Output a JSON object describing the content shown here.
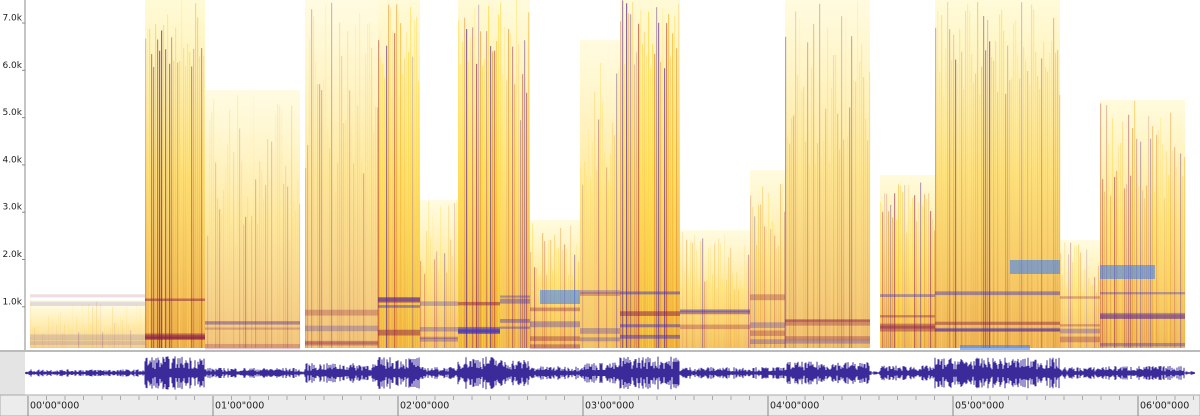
{
  "spectrogram": {
    "frequency_labels": [
      "7.0k",
      "6.0k",
      "5.0k",
      "4.0k",
      "3.0k",
      "2.0k",
      "1.0k"
    ]
  },
  "timeline": {
    "labels": [
      "00'00\"000",
      "01'00\"000",
      "02'00\"000",
      "03'00\"000",
      "04'00\"000",
      "05'00\"000",
      "06'00\"000"
    ]
  }
}
